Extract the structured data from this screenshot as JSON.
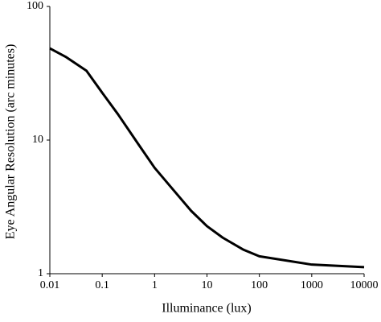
{
  "chart_data": {
    "type": "line",
    "x_label": "Illuminance (lux)",
    "y_label": "Eye Angular Resolution (arc minutes)",
    "x": [
      0.01,
      0.02,
      0.05,
      0.1,
      0.2,
      0.5,
      1,
      2,
      5,
      10,
      20,
      50,
      100,
      1000,
      10000
    ],
    "series": [
      {
        "color": "#000000",
        "values": [
          48.6,
          42,
          33,
          22.6,
          15.6,
          9.2,
          6.2,
          4.5,
          2.95,
          2.27,
          1.86,
          1.51,
          1.35,
          1.17,
          1.12
        ]
      }
    ],
    "xlim": [
      0.01,
      10000
    ],
    "ylim": [
      1,
      100
    ],
    "xticks": [
      0.01,
      0.1,
      1,
      10,
      100,
      1000,
      10000
    ],
    "yticks": [
      1,
      10,
      100
    ],
    "xscale": "log",
    "yscale": "log",
    "grid": false
  }
}
